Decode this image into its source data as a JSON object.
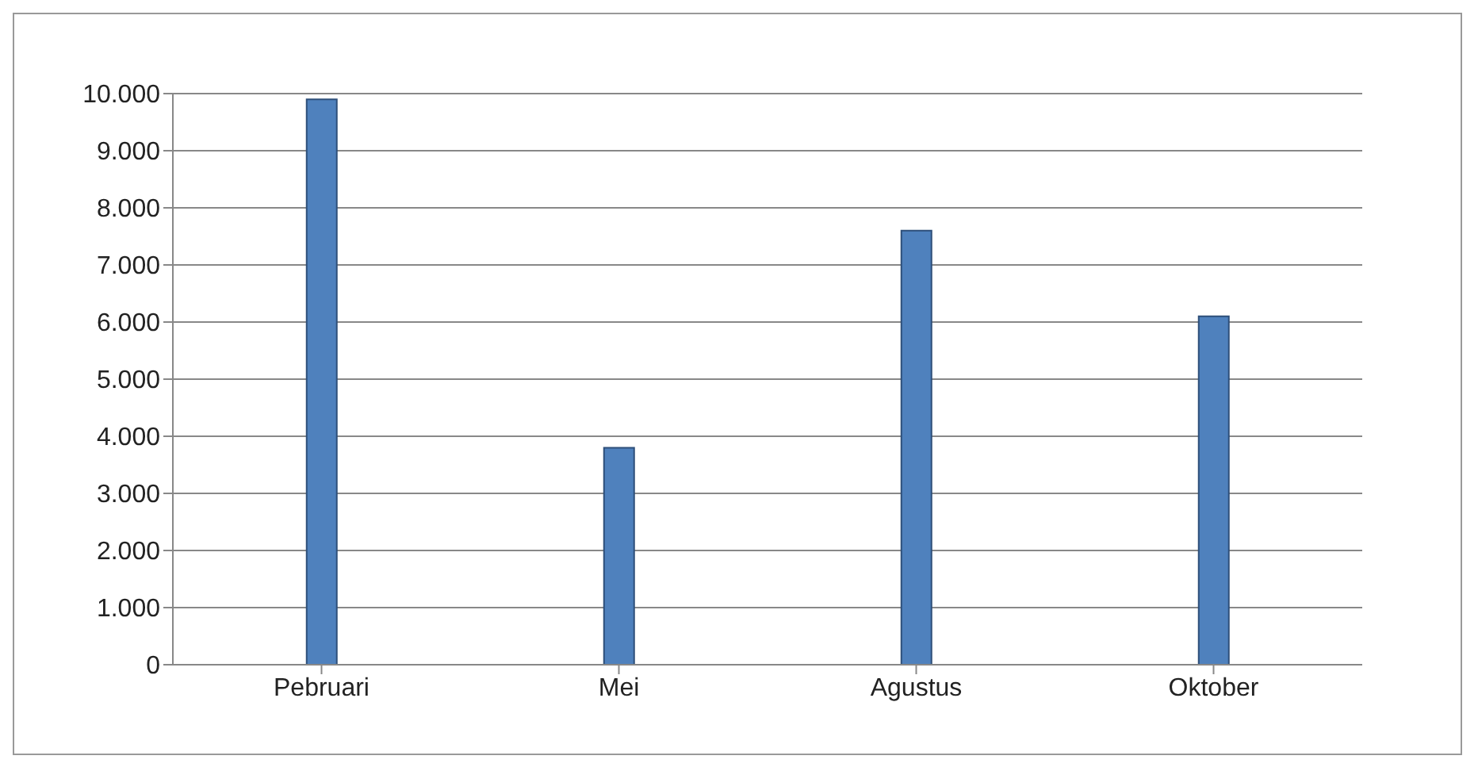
{
  "chart_data": {
    "type": "bar",
    "categories": [
      "Pebruari",
      "Mei",
      "Agustus",
      "Oktober"
    ],
    "values": [
      9900,
      3800,
      7600,
      6100
    ],
    "color": "#4f81bd",
    "ylim": [
      0,
      10000
    ],
    "yticks": [
      {
        "value": 0,
        "label": "0"
      },
      {
        "value": 1000,
        "label": "1.000"
      },
      {
        "value": 2000,
        "label": "2.000"
      },
      {
        "value": 3000,
        "label": "3.000"
      },
      {
        "value": 4000,
        "label": "4.000"
      },
      {
        "value": 5000,
        "label": "5.000"
      },
      {
        "value": 6000,
        "label": "6.000"
      },
      {
        "value": 7000,
        "label": "7.000"
      },
      {
        "value": 8000,
        "label": "8.000"
      },
      {
        "value": 9000,
        "label": "9.000"
      },
      {
        "value": 10000,
        "label": "10.000"
      }
    ],
    "grid": "y"
  }
}
